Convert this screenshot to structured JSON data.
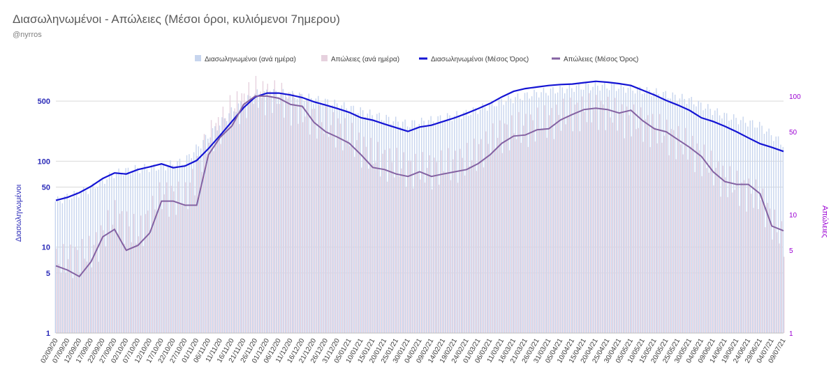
{
  "title": "Διασωληνωμένοι - Απώλειες (Μέσοι όροι, κυλιόμενοι 7ημερου)",
  "subtitle": "@nyrros",
  "colors": {
    "intubated_bar": "#c7d5ee",
    "deaths_bar": "#e6d1de",
    "intubated_line": "#1414d4",
    "deaths_line": "#8462a2",
    "left_axis": "#2b2bb8",
    "right_axis": "#9b00d3",
    "grid": "#d9d9d9"
  },
  "chart_data": {
    "type": "bar",
    "title": "Διασωληνωμένοι - Απώλειες (Μέσοι όροι, κυλιόμενοι 7ημερου)",
    "subtitle": "@nyrros",
    "ylabel": "Διασωληνωμένοι",
    "y2label": "Απώλειες",
    "yscale": "log",
    "ylim": [
      1,
      1000
    ],
    "y2lim": [
      1,
      150
    ],
    "yticks": [
      1,
      5,
      10,
      50,
      100,
      500
    ],
    "y2ticks": [
      1,
      5,
      10,
      50,
      100
    ],
    "legend_position": "top-center",
    "grid": true,
    "x_ticks": [
      "02/09/20",
      "07/09/20",
      "12/09/20",
      "17/09/20",
      "22/09/20",
      "27/09/20",
      "02/10/20",
      "07/10/20",
      "12/10/20",
      "17/10/20",
      "22/10/20",
      "27/10/20",
      "01/11/20",
      "06/11/20",
      "11/11/20",
      "16/11/20",
      "21/11/20",
      "26/11/20",
      "01/12/20",
      "06/12/20",
      "11/12/20",
      "16/12/20",
      "21/12/20",
      "26/12/20",
      "31/12/20",
      "05/01/21",
      "10/01/21",
      "15/01/21",
      "20/01/21",
      "25/01/21",
      "30/01/21",
      "04/02/21",
      "09/02/21",
      "14/02/21",
      "19/02/21",
      "24/02/21",
      "01/03/21",
      "06/03/21",
      "11/03/21",
      "16/03/21",
      "21/03/21",
      "26/03/21",
      "31/03/21",
      "05/04/21",
      "10/04/21",
      "15/04/21",
      "20/04/21",
      "25/04/21",
      "30/04/21",
      "05/05/21",
      "10/05/21",
      "15/05/21",
      "20/05/21",
      "25/05/21",
      "30/05/21",
      "04/06/21",
      "09/06/21",
      "14/06/21",
      "19/06/21",
      "24/06/21",
      "29/06/21",
      "04/07/21",
      "09/07/21"
    ],
    "series": [
      {
        "name": "Διασωληνωμένοι (ανά ημέρα)",
        "kind": "bar",
        "axis": "left",
        "dates": [
          "02/09/20",
          "17/09/20",
          "27/09/20",
          "07/10/20",
          "17/10/20",
          "27/10/20",
          "06/11/20",
          "16/11/20",
          "26/11/20",
          "06/12/20",
          "16/12/20",
          "31/12/20",
          "15/01/21",
          "30/01/21",
          "09/02/21",
          "24/02/21",
          "11/03/21",
          "26/03/21",
          "10/04/21",
          "20/04/21",
          "30/04/21",
          "15/05/21",
          "30/05/21",
          "14/06/21",
          "29/06/21",
          "09/07/21"
        ],
        "values": [
          34,
          48,
          72,
          82,
          86,
          100,
          195,
          380,
          610,
          630,
          570,
          460,
          350,
          270,
          300,
          360,
          500,
          620,
          720,
          760,
          730,
          640,
          520,
          340,
          260,
          160
        ]
      },
      {
        "name": "Απώλειες (ανά ημέρα)",
        "kind": "bar",
        "axis": "right",
        "dates": [
          "02/09/20",
          "17/09/20",
          "27/09/20",
          "07/10/20",
          "17/10/20",
          "27/10/20",
          "06/11/20",
          "16/11/20",
          "26/11/20",
          "06/12/20",
          "16/12/20",
          "31/12/20",
          "15/01/21",
          "30/01/21",
          "09/02/21",
          "24/02/21",
          "11/03/21",
          "26/03/21",
          "10/04/21",
          "20/04/21",
          "30/04/21",
          "15/05/21",
          "30/05/21",
          "14/06/21",
          "29/06/21",
          "09/07/21"
        ],
        "values": [
          4,
          5,
          10,
          7,
          15,
          14,
          45,
          80,
          110,
          100,
          75,
          55,
          32,
          25,
          25,
          30,
          50,
          60,
          75,
          80,
          70,
          55,
          38,
          20,
          14,
          6
        ]
      },
      {
        "name": "Διασωληνωμένοι (Μέσος Όρος)",
        "kind": "line",
        "axis": "left",
        "dates": [
          "02/09/20",
          "07/09/20",
          "12/09/20",
          "17/09/20",
          "22/09/20",
          "27/09/20",
          "02/10/20",
          "07/10/20",
          "12/10/20",
          "17/10/20",
          "22/10/20",
          "27/10/20",
          "01/11/20",
          "06/11/20",
          "11/11/20",
          "16/11/20",
          "21/11/20",
          "26/11/20",
          "01/12/20",
          "06/12/20",
          "11/12/20",
          "16/12/20",
          "21/12/20",
          "26/12/20",
          "31/12/20",
          "05/01/21",
          "10/01/21",
          "15/01/21",
          "20/01/21",
          "25/01/21",
          "30/01/21",
          "04/02/21",
          "09/02/21",
          "14/02/21",
          "19/02/21",
          "24/02/21",
          "01/03/21",
          "06/03/21",
          "11/03/21",
          "16/03/21",
          "21/03/21",
          "26/03/21",
          "31/03/21",
          "05/04/21",
          "10/04/21",
          "15/04/21",
          "20/04/21",
          "25/04/21",
          "30/04/21",
          "05/05/21",
          "10/05/21",
          "15/05/21",
          "20/05/21",
          "25/05/21",
          "30/05/21",
          "04/06/21",
          "09/06/21",
          "14/06/21",
          "19/06/21",
          "24/06/21",
          "29/06/21",
          "04/07/21",
          "09/07/21"
        ],
        "values": [
          35,
          38,
          43,
          51,
          63,
          73,
          71,
          80,
          86,
          93,
          84,
          88,
          102,
          140,
          200,
          290,
          420,
          560,
          620,
          620,
          590,
          550,
          490,
          450,
          410,
          370,
          320,
          300,
          270,
          245,
          222,
          250,
          262,
          290,
          320,
          360,
          410,
          470,
          560,
          650,
          700,
          730,
          760,
          780,
          790,
          820,
          850,
          830,
          800,
          760,
          670,
          590,
          510,
          450,
          390,
          320,
          290,
          255,
          220,
          187,
          160,
          145,
          130
        ]
      },
      {
        "name": "Απώλειες (Μέσος Όρος)",
        "kind": "line",
        "axis": "right",
        "dates": [
          "02/09/20",
          "07/09/20",
          "12/09/20",
          "17/09/20",
          "22/09/20",
          "27/09/20",
          "02/10/20",
          "07/10/20",
          "12/10/20",
          "17/10/20",
          "22/10/20",
          "27/10/20",
          "01/11/20",
          "06/11/20",
          "11/11/20",
          "16/11/20",
          "21/11/20",
          "26/11/20",
          "01/12/20",
          "06/12/20",
          "11/12/20",
          "16/12/20",
          "21/12/20",
          "26/12/20",
          "31/12/20",
          "05/01/21",
          "10/01/21",
          "15/01/21",
          "20/01/21",
          "25/01/21",
          "30/01/21",
          "04/02/21",
          "09/02/21",
          "14/02/21",
          "19/02/21",
          "24/02/21",
          "01/03/21",
          "06/03/21",
          "11/03/21",
          "16/03/21",
          "21/03/21",
          "26/03/21",
          "31/03/21",
          "05/04/21",
          "10/04/21",
          "15/04/21",
          "20/04/21",
          "25/04/21",
          "30/04/21",
          "05/05/21",
          "10/05/21",
          "15/05/21",
          "20/05/21",
          "25/05/21",
          "30/05/21",
          "04/06/21",
          "09/06/21",
          "14/06/21",
          "19/06/21",
          "24/06/21",
          "29/06/21",
          "04/07/21",
          "09/07/21"
        ],
        "values": [
          3.7,
          3.4,
          3.0,
          4.0,
          6.5,
          7.5,
          5.0,
          5.5,
          7.0,
          13.0,
          13.0,
          12.0,
          12.0,
          32.0,
          45.0,
          56.0,
          85.0,
          100.0,
          100.0,
          96.0,
          85.0,
          82.0,
          60.0,
          50.0,
          45.0,
          40.0,
          32.0,
          25.0,
          24.0,
          22.0,
          21.0,
          23.0,
          21.0,
          22.0,
          23.0,
          24.0,
          27.0,
          32.0,
          40.0,
          46.0,
          47.0,
          52.0,
          53.0,
          63.0,
          70.0,
          77.0,
          79.0,
          77.0,
          72.0,
          76.0,
          62.0,
          53.0,
          50.0,
          43.0,
          37.0,
          31.0,
          23.0,
          19.0,
          18.0,
          18.0,
          15.0,
          8.0,
          7.3
        ]
      }
    ]
  }
}
